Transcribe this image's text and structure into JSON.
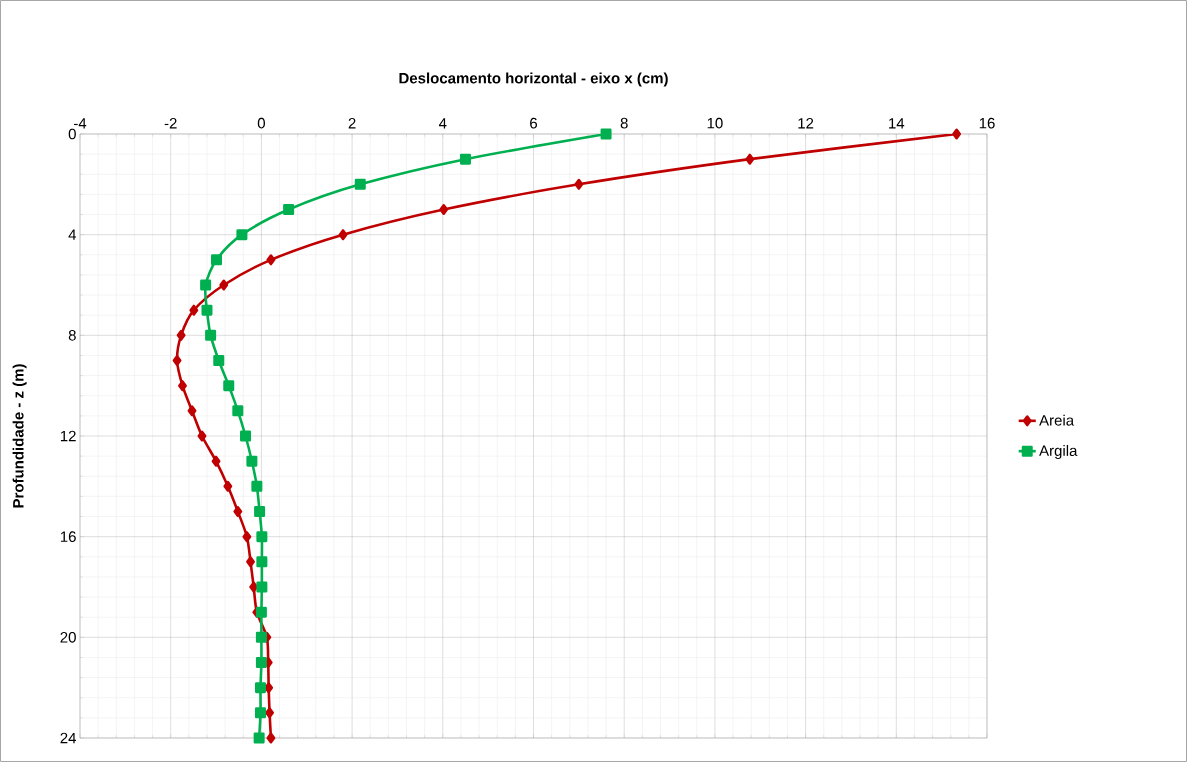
{
  "chart_data": {
    "type": "line",
    "xlabel": "Deslocamento horizontal  - eixo x (cm)",
    "ylabel": "Profundidade  - z (m)",
    "xlim": [
      -4,
      16
    ],
    "xticks": [
      -4,
      -2,
      0,
      2,
      4,
      6,
      8,
      10,
      12,
      14,
      16
    ],
    "ylim": [
      24,
      0
    ],
    "yticks": [
      0,
      4,
      8,
      12,
      16,
      20,
      24
    ],
    "grid": true,
    "legend": "right",
    "line_style": "solid",
    "series": [
      {
        "name": "Areia",
        "color": "#c00000",
        "marker": "diamond",
        "x": [
          15.33,
          10.77,
          7.0,
          4.02,
          1.8,
          0.21,
          -0.83,
          -1.49,
          -1.77,
          -1.86,
          -1.74,
          -1.53,
          -1.31,
          -1.0,
          -0.74,
          -0.52,
          -0.32,
          -0.24,
          -0.17,
          -0.1,
          0.12,
          0.15,
          0.16,
          0.18,
          0.21
        ],
        "values": [
          0,
          1,
          2,
          3,
          4,
          5,
          6,
          7,
          8,
          9,
          10,
          11,
          12,
          13,
          14,
          15,
          16,
          17,
          18,
          19,
          20,
          21,
          22,
          23,
          24
        ]
      },
      {
        "name": "Argila",
        "color": "#00b050",
        "marker": "square",
        "x": [
          7.6,
          4.5,
          2.18,
          0.6,
          -0.43,
          -0.99,
          -1.23,
          -1.2,
          -1.12,
          -0.94,
          -0.72,
          -0.52,
          -0.35,
          -0.21,
          -0.1,
          -0.04,
          0.01,
          0.01,
          0.01,
          0.0,
          0.0,
          0.0,
          -0.02,
          -0.02,
          -0.05
        ],
        "values": [
          0,
          1,
          2,
          3,
          4,
          5,
          6,
          7,
          8,
          9,
          10,
          11,
          12,
          13,
          14,
          15,
          16,
          17,
          18,
          19,
          20,
          21,
          22,
          23,
          24
        ]
      }
    ]
  }
}
